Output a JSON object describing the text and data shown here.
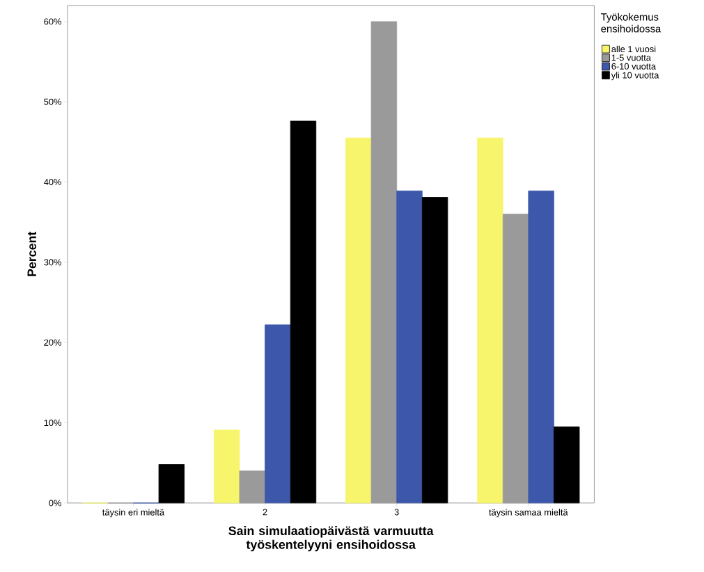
{
  "chart_data": {
    "type": "bar",
    "xlabel": "Sain simulaatiopäivästä varmuutta työskentelyyni ensihoidossa",
    "ylabel": "Percent",
    "legend_title": "Työkokemus ensihoidossa",
    "legend": "right",
    "categories": [
      "täysin eri mieltä",
      "2",
      "3",
      "täysin samaa mieltä"
    ],
    "series": [
      {
        "name": "alle 1 vuosi",
        "color": "#f7f56b",
        "values": [
          0,
          9.1,
          45.5,
          45.5
        ]
      },
      {
        "name": "1-5 vuotta",
        "color": "#9a9a9a",
        "values": [
          0,
          4.0,
          60.0,
          36.0
        ]
      },
      {
        "name": "6-10 vuotta",
        "color": "#3d58aa",
        "values": [
          0,
          22.2,
          38.9,
          38.9
        ]
      },
      {
        "name": "yli 10 vuotta",
        "color": "#000000",
        "values": [
          4.8,
          47.6,
          38.1,
          9.5
        ]
      }
    ],
    "ylim": [
      0,
      62
    ],
    "yticks": [
      {
        "value": 0,
        "label": "0%"
      },
      {
        "value": 10,
        "label": "10%"
      },
      {
        "value": 20,
        "label": "20%"
      },
      {
        "value": 30,
        "label": "30%"
      },
      {
        "value": 40,
        "label": "40%"
      },
      {
        "value": 50,
        "label": "50%"
      },
      {
        "value": 60,
        "label": "60%"
      }
    ],
    "grid": false
  }
}
